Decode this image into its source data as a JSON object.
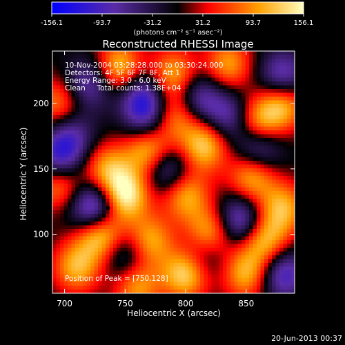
{
  "chart_data": {
    "type": "heatmap",
    "title": "Reconstructed RHESSI Image",
    "xlabel": "Heliocentric X (arcsec)",
    "ylabel": "Heliocentric Y (arcsec)",
    "xlim": [
      690,
      890
    ],
    "ylim": [
      55,
      240
    ],
    "x_ticks": [
      700,
      750,
      800,
      850
    ],
    "y_ticks": [
      100,
      150,
      200
    ],
    "colorbar": {
      "min": -156.1,
      "max": 156.1,
      "tick_labels": [
        "-156.1",
        "-93.7",
        "-31.2",
        "31.2",
        "93.7",
        "156.1"
      ],
      "units_label": "(photons cm⁻² s⁻¹ asec⁻²)",
      "colors": [
        "#0000ff",
        "#5a2ca6",
        "#000000",
        "#ff0000",
        "#ffa000",
        "#ffffc0"
      ]
    },
    "annotations": [
      "10-Nov-2004 03:28:28.000 to 03:30:24.000",
      "Detectors: 4F 5F 6F 7F 8F, Att 1",
      "Energy Range: 3.0 - 6.0 keV",
      "Clean     Total counts: 1.38E+04"
    ],
    "peak_label": "Position of Peak = [750,128]",
    "peak": [
      750,
      128
    ],
    "blobs": [
      {
        "x": 695,
        "y": 200,
        "v": 90
      },
      {
        "x": 745,
        "y": 228,
        "v": 120
      },
      {
        "x": 790,
        "y": 222,
        "v": 110
      },
      {
        "x": 835,
        "y": 230,
        "v": 100
      },
      {
        "x": 880,
        "y": 200,
        "v": 120
      },
      {
        "x": 790,
        "y": 190,
        "v": 100
      },
      {
        "x": 770,
        "y": 165,
        "v": 140
      },
      {
        "x": 815,
        "y": 168,
        "v": 130
      },
      {
        "x": 860,
        "y": 185,
        "v": 110
      },
      {
        "x": 695,
        "y": 140,
        "v": 120
      },
      {
        "x": 735,
        "y": 150,
        "v": 100
      },
      {
        "x": 750,
        "y": 130,
        "v": 156
      },
      {
        "x": 800,
        "y": 130,
        "v": 110
      },
      {
        "x": 855,
        "y": 145,
        "v": 120
      },
      {
        "x": 880,
        "y": 120,
        "v": 110
      },
      {
        "x": 730,
        "y": 100,
        "v": 150
      },
      {
        "x": 770,
        "y": 95,
        "v": 110
      },
      {
        "x": 820,
        "y": 100,
        "v": 130
      },
      {
        "x": 865,
        "y": 95,
        "v": 120
      },
      {
        "x": 710,
        "y": 75,
        "v": 110
      },
      {
        "x": 800,
        "y": 70,
        "v": 140
      },
      {
        "x": 850,
        "y": 70,
        "v": 110
      },
      {
        "x": 760,
        "y": 60,
        "v": 100
      },
      {
        "x": 725,
        "y": 120,
        "v": -156
      },
      {
        "x": 695,
        "y": 155,
        "v": -120
      },
      {
        "x": 765,
        "y": 205,
        "v": -110
      },
      {
        "x": 720,
        "y": 215,
        "v": -90
      },
      {
        "x": 810,
        "y": 205,
        "v": -90
      },
      {
        "x": 880,
        "y": 220,
        "v": -110
      },
      {
        "x": 860,
        "y": 165,
        "v": -110
      },
      {
        "x": 785,
        "y": 150,
        "v": -100
      },
      {
        "x": 845,
        "y": 110,
        "v": -120
      },
      {
        "x": 815,
        "y": 85,
        "v": -80
      },
      {
        "x": 750,
        "y": 85,
        "v": -80
      },
      {
        "x": 880,
        "y": 70,
        "v": -110
      },
      {
        "x": 770,
        "y": 185,
        "v": -90
      },
      {
        "x": 835,
        "y": 190,
        "v": -90
      },
      {
        "x": 705,
        "y": 175,
        "v": -80
      }
    ]
  },
  "footer": {
    "timestamp": "20-Jun-2013 00:37"
  }
}
